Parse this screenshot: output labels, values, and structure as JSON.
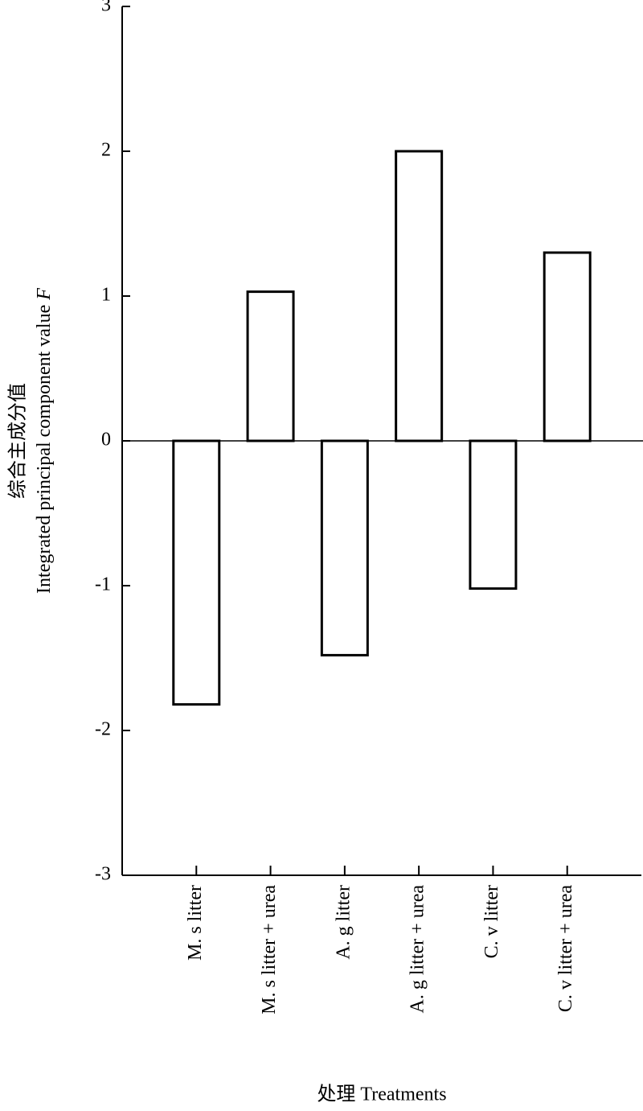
{
  "chart_data": {
    "type": "bar",
    "ylabel_cn": "综合主成分值",
    "ylabel_en": "Integrated principal component value",
    "ylabel_var": "F",
    "xlabel": "处理 Treatments",
    "categories": [
      "M. s litter",
      "M. s litter + urea",
      "A. g litter",
      "A. g litter + urea",
      "C. v litter",
      "C. v litter + urea"
    ],
    "values": [
      -1.82,
      1.03,
      -1.48,
      2.0,
      -1.02,
      1.3
    ],
    "color": "#ffffff",
    "edgecolor": "#000000",
    "ylim": [
      -3,
      3
    ],
    "yticks": [
      -3,
      -2,
      -1,
      0,
      1,
      2,
      3
    ],
    "zero_line": true
  }
}
